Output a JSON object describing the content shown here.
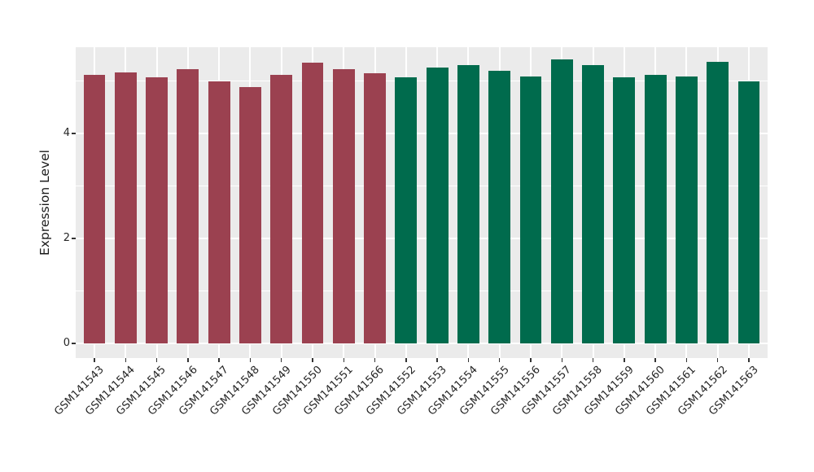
{
  "figure": {
    "background": "#FFFFFF",
    "panel_background": "#EBEBEB",
    "grid_color": "#FFFFFF",
    "tick_color": "#333333",
    "axis_text_color": "#262626",
    "axis_title_color": "#1A1A1A"
  },
  "y_axis": {
    "title": "Expression Level",
    "tick_labels": [
      "0",
      "2",
      "4"
    ]
  },
  "chart_data": {
    "type": "bar",
    "title": "",
    "xlabel": "",
    "ylabel": "Expression Level",
    "categories": [
      "GSM141543",
      "GSM141544",
      "GSM141545",
      "GSM141546",
      "GSM141547",
      "GSM141548",
      "GSM141549",
      "GSM141550",
      "GSM141551",
      "GSM141566",
      "GSM141552",
      "GSM141553",
      "GSM141554",
      "GSM141555",
      "GSM141556",
      "GSM141557",
      "GSM141558",
      "GSM141559",
      "GSM141560",
      "GSM141561",
      "GSM141562",
      "GSM141563"
    ],
    "values": [
      5.12,
      5.17,
      5.07,
      5.23,
      4.99,
      4.88,
      5.12,
      5.35,
      5.23,
      5.15,
      5.07,
      5.25,
      5.3,
      5.2,
      5.09,
      5.41,
      5.3,
      5.07,
      5.11,
      5.09,
      5.37,
      4.99
    ],
    "bar_groups": [
      "group1",
      "group1",
      "group1",
      "group1",
      "group1",
      "group1",
      "group1",
      "group1",
      "group1",
      "group1",
      "group2",
      "group2",
      "group2",
      "group2",
      "group2",
      "group2",
      "group2",
      "group2",
      "group2",
      "group2",
      "group2",
      "group2"
    ],
    "group_colors": {
      "group1": "#9B4150",
      "group2": "#006B4D"
    },
    "ylim": [
      -0.28,
      5.66
    ],
    "yticks": [
      0,
      2,
      4
    ],
    "yticks_minor": [
      1,
      3,
      5
    ],
    "grid": "on",
    "legend": "none",
    "bar_width_fraction": 0.7,
    "xlabel_rotation_deg": 45
  }
}
